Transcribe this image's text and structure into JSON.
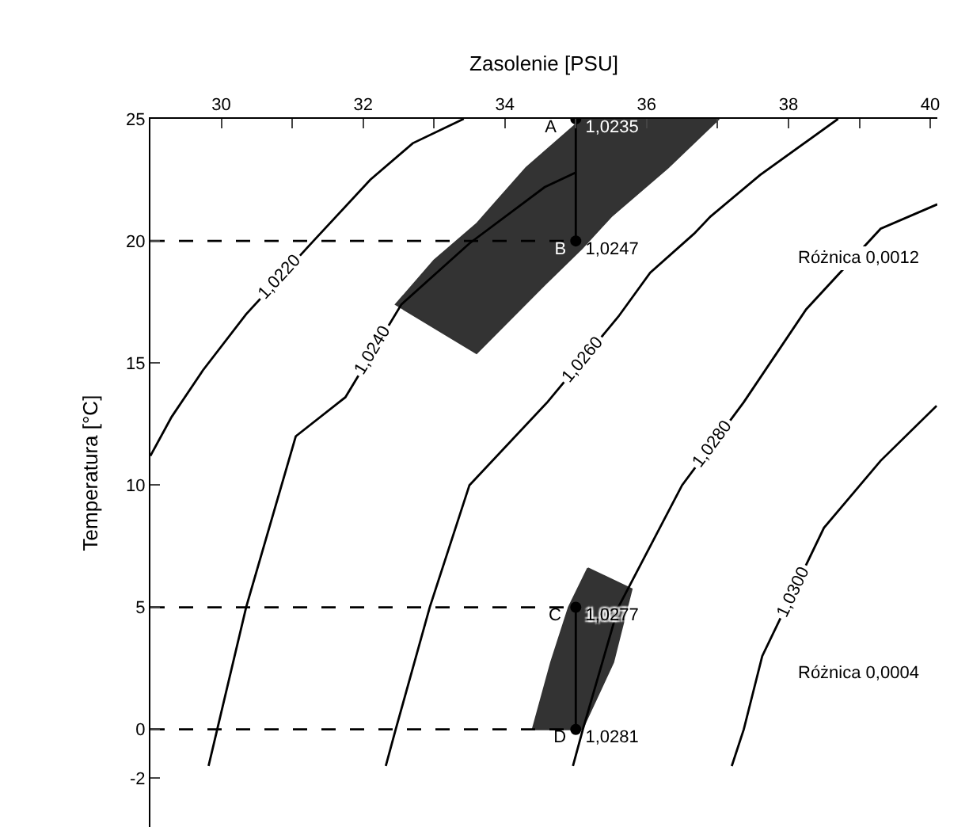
{
  "chart_data": {
    "type": "line",
    "xlabel": "Zasolenie [PSU]",
    "ylabel": "Temperatura [°C]",
    "xlim": [
      29,
      40.1
    ],
    "ylim": [
      -4,
      25
    ],
    "xticks": [
      30,
      {
        "value": 31,
        "label": null
      },
      32,
      {
        "value": 33,
        "label": null
      },
      34,
      {
        "value": 35,
        "label": null
      },
      36,
      {
        "value": 37,
        "label": null
      },
      38,
      {
        "value": 39,
        "label": null
      },
      40
    ],
    "yticks": [
      25,
      20,
      15,
      10,
      5,
      0,
      -2
    ],
    "legend": false,
    "series": [
      {
        "type": "area",
        "color": "#333333",
        "x": [
          35.09,
          37.02,
          36.3,
          35.5,
          35.09,
          34.56,
          33.6,
          32.46,
          33.0,
          33.6,
          34.3,
          35.09
        ],
        "values": [
          25,
          25,
          23,
          21,
          19.7,
          18.2,
          15.4,
          17.4,
          19.2,
          20.7,
          23,
          25
        ]
      },
      {
        "type": "area",
        "color": "#333333",
        "x": [
          35.17,
          35.79,
          35.53,
          35.09,
          34.39,
          34.65,
          34.9,
          35.17
        ],
        "values": [
          6.6,
          5.75,
          2.75,
          0,
          0,
          2.75,
          5,
          6.6
        ]
      },
      {
        "name": "1,0220",
        "color": "#000000",
        "x": [
          29.0,
          29.3,
          29.74,
          30.35,
          31.3,
          32.1,
          32.7,
          33.42
        ],
        "values": [
          11.2,
          12.8,
          14.7,
          17,
          20,
          22.5,
          24,
          25
        ]
      },
      {
        "name": "1,0240",
        "color": "#000000",
        "x": [
          29.82,
          30.35,
          31.05,
          31.75,
          32.54,
          33.5,
          34.56,
          35.0
        ],
        "values": [
          -1.5,
          5,
          12,
          13.6,
          17.4,
          19.9,
          22.2,
          22.8
        ]
      },
      {
        "name": "1,0260",
        "color": "#000000",
        "x": [
          32.32,
          32.46,
          32.94,
          33.5,
          34.6,
          35.6,
          36.05,
          36.67,
          36.9,
          37.6,
          38.7
        ],
        "values": [
          -1.5,
          0,
          5,
          10,
          13.4,
          16.9,
          18.7,
          20.3,
          21,
          22.7,
          25
        ]
      },
      {
        "name": "1,0280",
        "color": "#000000",
        "x": [
          34.96,
          35.1,
          35.6,
          36.5,
          37.37,
          38.25,
          39.3,
          40.1
        ],
        "values": [
          -1.5,
          0,
          5,
          10,
          13.4,
          17.2,
          20.5,
          21.5
        ]
      },
      {
        "name": "1,0300",
        "color": "#000000",
        "x": [
          37.2,
          37.37,
          37.63,
          38.5,
          39.3,
          40.09
        ],
        "values": [
          -1.5,
          0,
          3,
          8.25,
          11,
          13.25
        ]
      },
      {
        "type": "line",
        "color": "#000000",
        "line_style": "dashed",
        "x": [
          29,
          35
        ],
        "values": [
          20,
          20
        ]
      },
      {
        "type": "line",
        "color": "#000000",
        "line_style": "dashed",
        "x": [
          29,
          35
        ],
        "values": [
          5,
          5
        ]
      },
      {
        "type": "line",
        "color": "#000000",
        "line_style": "dashed",
        "x": [
          29,
          35
        ],
        "values": [
          0,
          0
        ]
      },
      {
        "type": "line",
        "color": "#000000",
        "x": [
          35,
          35
        ],
        "values": [
          25,
          20
        ]
      },
      {
        "type": "line",
        "color": "#000000",
        "x": [
          35,
          35
        ],
        "values": [
          5,
          0
        ]
      },
      {
        "type": "scatter",
        "color": "#000000",
        "marker": "circle",
        "x": [
          35,
          35,
          35,
          35
        ],
        "values": [
          25,
          20,
          5,
          0
        ]
      }
    ],
    "annotations": [
      "A",
      "B",
      "C",
      "D",
      "1,0235",
      "1,0247",
      "1,0277",
      "1,0281",
      "Różnica 0,0012",
      "Różnica 0,0004"
    ]
  }
}
